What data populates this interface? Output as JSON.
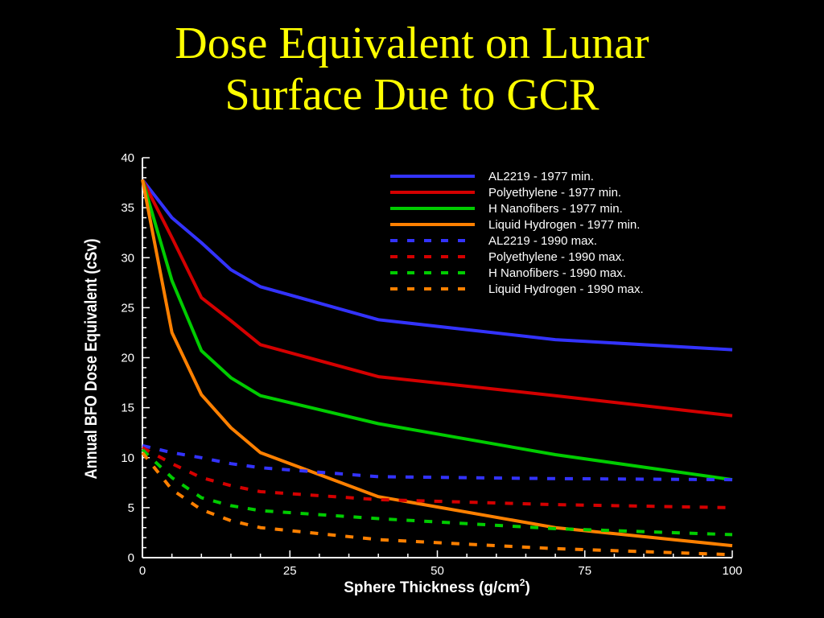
{
  "slide": {
    "title_line1": "Dose Equivalent on Lunar",
    "title_line2": "Surface Due to GCR"
  },
  "chart_data": {
    "type": "line",
    "xlabel": "Sphere Thickness (g/cm",
    "xlabel_sup": "2",
    "xlabel_end": ")",
    "ylabel": "Annual BFO Dose Equivalent (cSv)",
    "xlim": [
      0,
      100
    ],
    "ylim": [
      0,
      40
    ],
    "x_ticks": [
      0,
      25,
      50,
      75,
      100
    ],
    "y_ticks": [
      0,
      5,
      10,
      15,
      20,
      25,
      30,
      35,
      40
    ],
    "grid": false,
    "legend_position": "top-right",
    "series": [
      {
        "name": "AL2219 - 1977 min.",
        "color": "#3333ff",
        "dashed": false,
        "x": [
          0,
          5,
          10,
          15,
          20,
          40,
          70,
          100
        ],
        "y": [
          37.8,
          34.0,
          31.5,
          28.8,
          27.1,
          23.8,
          21.8,
          20.8
        ]
      },
      {
        "name": "Polyethylene - 1977 min.",
        "color": "#d40000",
        "dashed": false,
        "x": [
          0,
          5,
          10,
          15,
          20,
          40,
          70,
          100
        ],
        "y": [
          37.8,
          32.0,
          26.0,
          23.7,
          21.3,
          18.1,
          16.2,
          14.2
        ]
      },
      {
        "name": "H Nanofibers - 1977 min.",
        "color": "#00cc00",
        "dashed": false,
        "x": [
          0,
          5,
          10,
          15,
          20,
          40,
          70,
          100
        ],
        "y": [
          37.8,
          27.7,
          20.7,
          18.0,
          16.2,
          13.4,
          10.3,
          7.8
        ]
      },
      {
        "name": "Liquid Hydrogen - 1977 min.",
        "color": "#ff8000",
        "dashed": false,
        "x": [
          0,
          5,
          10,
          15,
          20,
          40,
          70,
          100
        ],
        "y": [
          37.8,
          22.5,
          16.3,
          13.0,
          10.5,
          6.1,
          3.0,
          1.2
        ]
      },
      {
        "name": "AL2219 - 1990 max.",
        "color": "#3333ff",
        "dashed": true,
        "x": [
          0,
          5,
          10,
          15,
          20,
          40,
          70,
          100
        ],
        "y": [
          11.2,
          10.5,
          10.0,
          9.4,
          9.0,
          8.1,
          7.9,
          7.8
        ]
      },
      {
        "name": "Polyethylene - 1990 max.",
        "color": "#d40000",
        "dashed": true,
        "x": [
          0,
          5,
          10,
          15,
          20,
          40,
          70,
          100
        ],
        "y": [
          11.0,
          9.4,
          8.0,
          7.2,
          6.6,
          5.8,
          5.3,
          5.0
        ]
      },
      {
        "name": "H Nanofibers - 1990 max.",
        "color": "#00cc00",
        "dashed": true,
        "x": [
          0,
          5,
          10,
          15,
          20,
          40,
          70,
          100
        ],
        "y": [
          10.8,
          8.0,
          6.0,
          5.2,
          4.7,
          3.9,
          2.9,
          2.3
        ]
      },
      {
        "name": "Liquid Hydrogen - 1990 max.",
        "color": "#ff8000",
        "dashed": true,
        "x": [
          0,
          5,
          10,
          15,
          20,
          40,
          70,
          100
        ],
        "y": [
          10.5,
          6.8,
          4.8,
          3.7,
          3.0,
          1.8,
          0.9,
          0.3
        ]
      }
    ]
  }
}
